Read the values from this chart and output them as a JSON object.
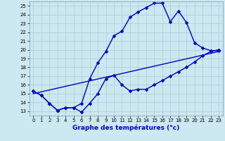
{
  "xlabel": "Graphe des températures (°c)",
  "bg_color": "#cce8f0",
  "line_color": "#0000bb",
  "grid_color": "#aaccd8",
  "xlim": [
    -0.5,
    23.5
  ],
  "ylim": [
    12.5,
    25.5
  ],
  "yticks": [
    13,
    14,
    15,
    16,
    17,
    18,
    19,
    20,
    21,
    22,
    23,
    24,
    25
  ],
  "xticks": [
    0,
    1,
    2,
    3,
    4,
    5,
    6,
    7,
    8,
    9,
    10,
    11,
    12,
    13,
    14,
    15,
    16,
    17,
    18,
    19,
    20,
    21,
    22,
    23
  ],
  "line1_x": [
    0,
    1,
    2,
    3,
    4,
    5,
    6,
    7,
    8,
    9,
    10,
    11,
    12,
    13,
    14,
    15,
    16,
    17,
    18,
    19,
    20,
    21,
    22,
    23
  ],
  "line1_y": [
    15.3,
    14.8,
    13.9,
    13.1,
    13.4,
    13.4,
    12.9,
    13.9,
    15.0,
    16.7,
    17.1,
    16.0,
    15.3,
    15.5,
    15.5,
    16.0,
    16.5,
    17.0,
    17.5,
    18.0,
    18.6,
    19.3,
    19.8,
    20.0
  ],
  "line2_x": [
    0,
    1,
    2,
    3,
    4,
    5,
    6,
    7,
    8,
    9,
    10,
    11,
    12,
    13,
    14,
    15,
    16,
    17,
    18,
    19,
    20,
    21,
    22,
    23
  ],
  "line2_y": [
    15.3,
    14.8,
    13.9,
    13.1,
    13.4,
    13.4,
    13.9,
    16.7,
    18.5,
    19.8,
    21.6,
    22.1,
    23.7,
    24.3,
    24.8,
    25.3,
    25.3,
    23.2,
    24.4,
    23.1,
    20.8,
    20.2,
    19.9,
    19.9
  ],
  "line3_x": [
    0,
    23
  ],
  "line3_y": [
    15.0,
    19.8
  ],
  "marker": "D",
  "markersize": 2.5,
  "linewidth": 1.0,
  "tick_fontsize": 5.0,
  "xlabel_fontsize": 6.5
}
